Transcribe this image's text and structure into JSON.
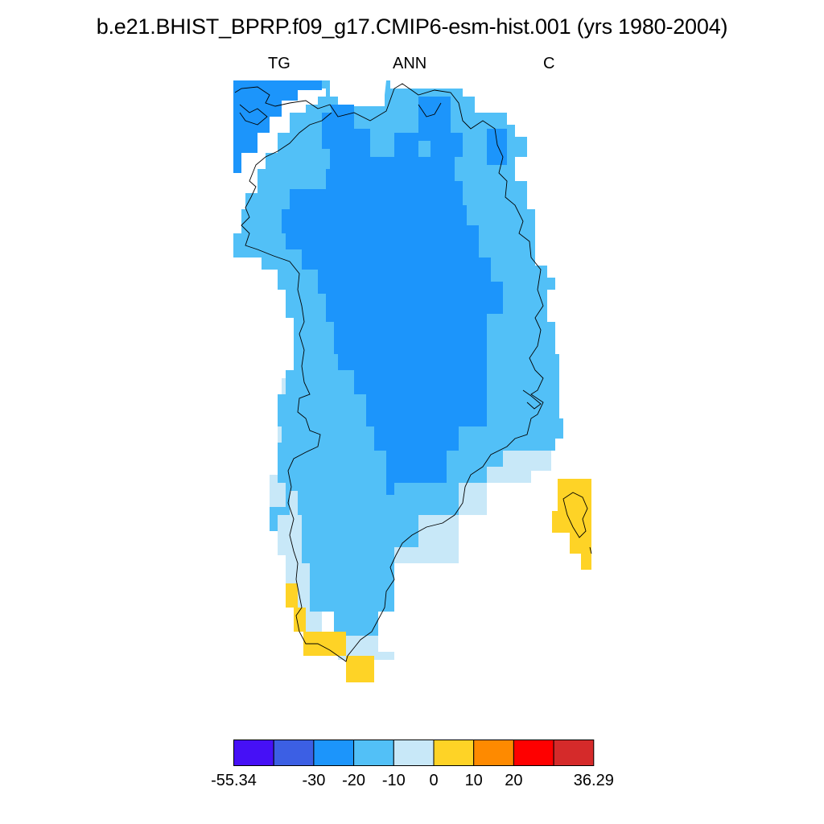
{
  "title": "b.e21.BHIST_BPRP.f09_g17.CMIP6-esm-hist.001 (yrs 1980-2004)",
  "subtitle": {
    "left": "TG",
    "center": "ANN",
    "right": "C"
  },
  "colorbar": {
    "colors": [
      "#4610f6",
      "#3c5fe4",
      "#1c95fb",
      "#52c0f7",
      "#c8e8f8",
      "#fed326",
      "#fe8a00",
      "#fe0000",
      "#d52a2a"
    ],
    "labels": [
      "-55.34",
      "-30",
      "-20",
      "-10",
      "0",
      "10",
      "20",
      "36.29"
    ],
    "boundaries": [
      -55.34,
      -40,
      -30,
      -20,
      -10,
      0,
      10,
      20,
      30,
      36.29
    ],
    "printed_label_positions": [
      0,
      2,
      3,
      4,
      5,
      6,
      7,
      9
    ]
  },
  "map_colors": {
    "dark_blue": "#1c95fb",
    "light_blue": "#52c0f7",
    "pale_blue": "#c8e8f8",
    "yellow": "#fed326",
    "coastline": "#000000"
  }
}
